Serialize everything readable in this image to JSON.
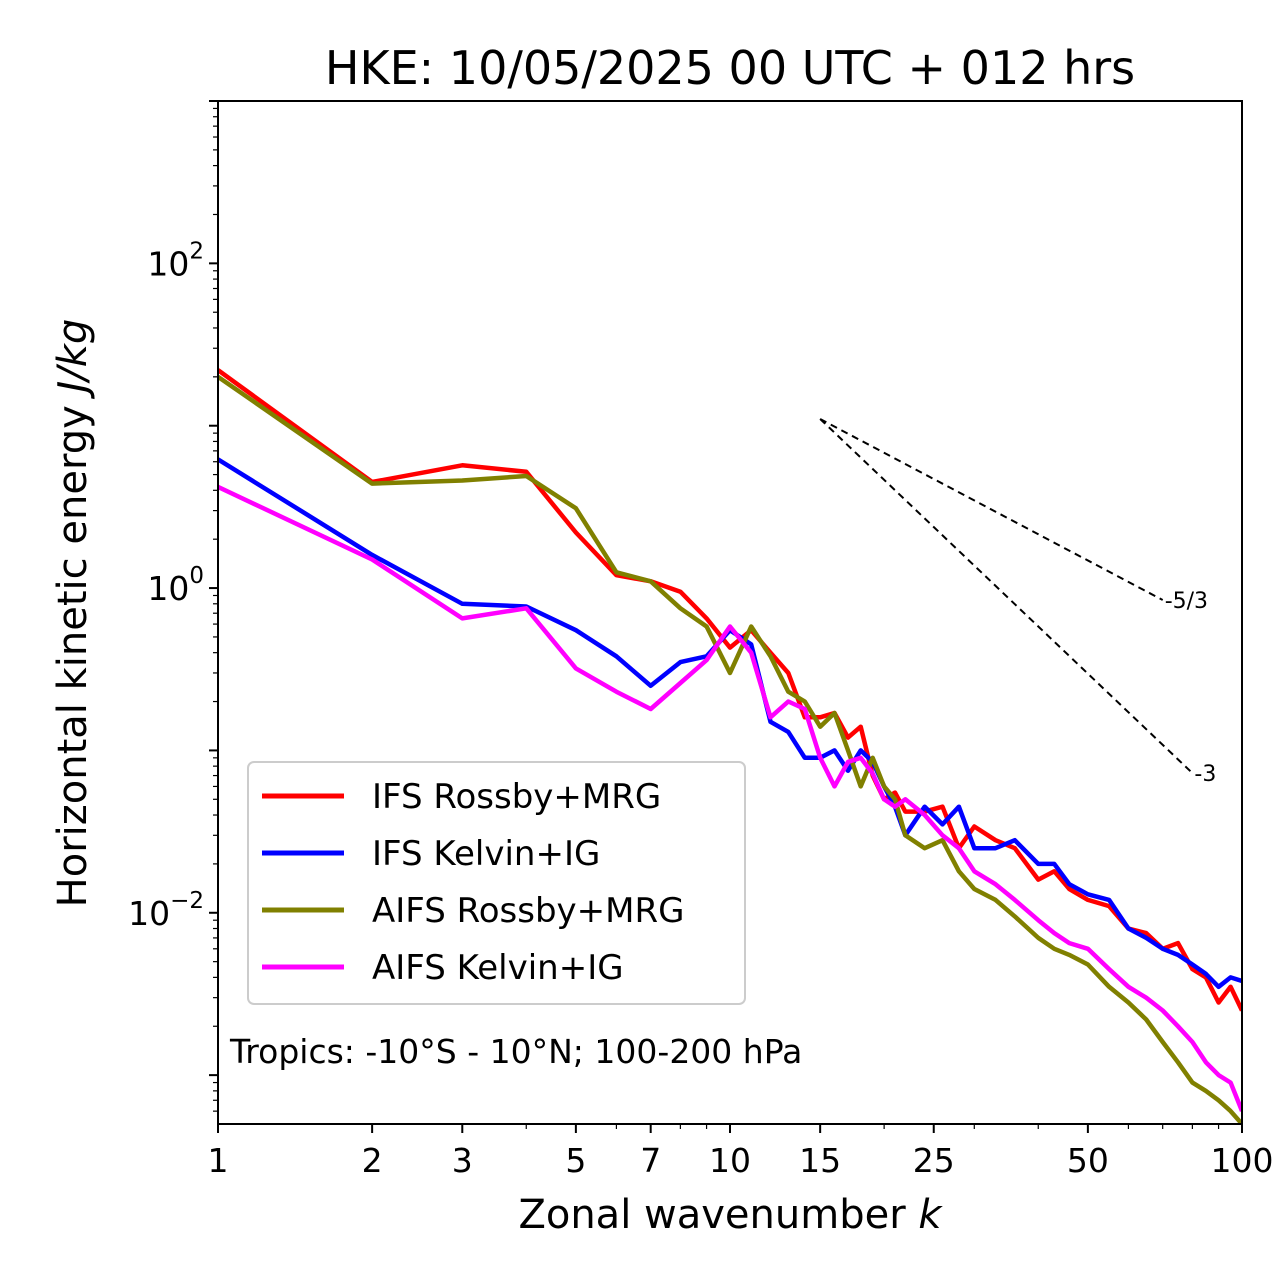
{
  "chart_data": {
    "type": "line",
    "title": "HKE: 10/05/2025 00 UTC + 012 hrs",
    "xlabel": "Zonal wavenumber",
    "xlabel_var": "k",
    "ylabel": "Horizontal kinetic energy",
    "ylabel_unit": "J/kg",
    "xscale": "log",
    "yscale": "log",
    "xlim": [
      1,
      100
    ],
    "ylim": [
      0.0005,
      1000
    ],
    "x_ticks": [
      1,
      2,
      3,
      5,
      7,
      10,
      15,
      25,
      50,
      100
    ],
    "x_tick_labels": [
      "1",
      "2",
      "3",
      "5",
      "7",
      "10",
      "15",
      "25",
      "50",
      "100"
    ],
    "y_ticks": [
      {
        "value": 100,
        "base": "10",
        "exp": "2"
      },
      {
        "value": 1,
        "base": "10",
        "exp": "0"
      },
      {
        "value": 0.01,
        "base": "10",
        "exp": "−2"
      }
    ],
    "grid": false,
    "legend_position": "lower-left",
    "annotation": "Tropics: -10°S - 10°N; 100-200 hPa",
    "reference_slopes": [
      {
        "label": "-5/3",
        "slope": -1.6667,
        "x0": 15,
        "y0": 11,
        "x1": 70
      },
      {
        "label": "-3",
        "slope": -3,
        "x0": 15,
        "y0": 11,
        "x1": 80
      }
    ],
    "series": [
      {
        "name": "IFS Rossby+MRG",
        "color": "#ff0000",
        "points": [
          [
            1,
            22
          ],
          [
            2,
            4.5
          ],
          [
            3,
            5.7
          ],
          [
            4,
            5.2
          ],
          [
            5,
            2.2
          ],
          [
            6,
            1.2
          ],
          [
            7,
            1.1
          ],
          [
            8,
            0.95
          ],
          [
            9,
            0.65
          ],
          [
            10,
            0.43
          ],
          [
            11,
            0.55
          ],
          [
            12,
            0.4
          ],
          [
            13,
            0.3
          ],
          [
            14,
            0.16
          ],
          [
            15,
            0.16
          ],
          [
            16,
            0.17
          ],
          [
            17,
            0.12
          ],
          [
            18,
            0.14
          ],
          [
            19,
            0.07
          ],
          [
            20,
            0.05
          ],
          [
            21,
            0.055
          ],
          [
            22,
            0.042
          ],
          [
            24,
            0.042
          ],
          [
            26,
            0.045
          ],
          [
            28,
            0.025
          ],
          [
            30,
            0.034
          ],
          [
            33,
            0.028
          ],
          [
            36,
            0.025
          ],
          [
            40,
            0.016
          ],
          [
            43,
            0.018
          ],
          [
            46,
            0.014
          ],
          [
            50,
            0.012
          ],
          [
            55,
            0.011
          ],
          [
            60,
            0.008
          ],
          [
            65,
            0.0075
          ],
          [
            70,
            0.006
          ],
          [
            75,
            0.0065
          ],
          [
            80,
            0.0045
          ],
          [
            85,
            0.004
          ],
          [
            90,
            0.0028
          ],
          [
            95,
            0.0035
          ],
          [
            100,
            0.0025
          ]
        ]
      },
      {
        "name": "IFS Kelvin+IG",
        "color": "#0000ff",
        "points": [
          [
            1,
            6.2
          ],
          [
            2,
            1.6
          ],
          [
            3,
            0.8
          ],
          [
            4,
            0.77
          ],
          [
            5,
            0.55
          ],
          [
            6,
            0.38
          ],
          [
            7,
            0.25
          ],
          [
            8,
            0.35
          ],
          [
            9,
            0.38
          ],
          [
            10,
            0.55
          ],
          [
            11,
            0.45
          ],
          [
            12,
            0.15
          ],
          [
            13,
            0.13
          ],
          [
            14,
            0.09
          ],
          [
            15,
            0.09
          ],
          [
            16,
            0.1
          ],
          [
            17,
            0.075
          ],
          [
            18,
            0.1
          ],
          [
            19,
            0.085
          ],
          [
            20,
            0.06
          ],
          [
            21,
            0.045
          ],
          [
            22,
            0.03
          ],
          [
            24,
            0.045
          ],
          [
            26,
            0.035
          ],
          [
            28,
            0.045
          ],
          [
            30,
            0.025
          ],
          [
            33,
            0.025
          ],
          [
            36,
            0.028
          ],
          [
            40,
            0.02
          ],
          [
            43,
            0.02
          ],
          [
            46,
            0.015
          ],
          [
            50,
            0.013
          ],
          [
            55,
            0.012
          ],
          [
            60,
            0.008
          ],
          [
            65,
            0.007
          ],
          [
            70,
            0.006
          ],
          [
            75,
            0.0055
          ],
          [
            80,
            0.0048
          ],
          [
            85,
            0.0042
          ],
          [
            90,
            0.0035
          ],
          [
            95,
            0.004
          ],
          [
            100,
            0.0038
          ]
        ]
      },
      {
        "name": "AIFS Rossby+MRG",
        "color": "#808000",
        "points": [
          [
            1,
            20
          ],
          [
            2,
            4.4
          ],
          [
            3,
            4.6
          ],
          [
            4,
            4.9
          ],
          [
            5,
            3.1
          ],
          [
            6,
            1.25
          ],
          [
            7,
            1.1
          ],
          [
            8,
            0.75
          ],
          [
            9,
            0.58
          ],
          [
            10,
            0.3
          ],
          [
            11,
            0.58
          ],
          [
            12,
            0.38
          ],
          [
            13,
            0.23
          ],
          [
            14,
            0.2
          ],
          [
            15,
            0.14
          ],
          [
            16,
            0.17
          ],
          [
            17,
            0.1
          ],
          [
            18,
            0.06
          ],
          [
            19,
            0.09
          ],
          [
            20,
            0.06
          ],
          [
            21,
            0.05
          ],
          [
            22,
            0.03
          ],
          [
            24,
            0.025
          ],
          [
            26,
            0.028
          ],
          [
            28,
            0.018
          ],
          [
            30,
            0.014
          ],
          [
            33,
            0.012
          ],
          [
            36,
            0.0095
          ],
          [
            40,
            0.007
          ],
          [
            43,
            0.006
          ],
          [
            46,
            0.0055
          ],
          [
            50,
            0.0048
          ],
          [
            55,
            0.0035
          ],
          [
            60,
            0.0028
          ],
          [
            65,
            0.0022
          ],
          [
            70,
            0.0016
          ],
          [
            75,
            0.0012
          ],
          [
            80,
            0.0009
          ],
          [
            85,
            0.0008
          ],
          [
            90,
            0.0007
          ],
          [
            95,
            0.0006
          ],
          [
            100,
            0.0005
          ]
        ]
      },
      {
        "name": "AIFS Kelvin+IG",
        "color": "#ff00ff",
        "points": [
          [
            1,
            4.2
          ],
          [
            2,
            1.5
          ],
          [
            3,
            0.65
          ],
          [
            4,
            0.75
          ],
          [
            5,
            0.32
          ],
          [
            6,
            0.23
          ],
          [
            7,
            0.18
          ],
          [
            8,
            0.26
          ],
          [
            9,
            0.36
          ],
          [
            10,
            0.58
          ],
          [
            11,
            0.4
          ],
          [
            12,
            0.16
          ],
          [
            13,
            0.2
          ],
          [
            14,
            0.18
          ],
          [
            15,
            0.09
          ],
          [
            16,
            0.06
          ],
          [
            17,
            0.085
          ],
          [
            18,
            0.09
          ],
          [
            19,
            0.072
          ],
          [
            20,
            0.05
          ],
          [
            21,
            0.045
          ],
          [
            22,
            0.05
          ],
          [
            24,
            0.04
          ],
          [
            26,
            0.03
          ],
          [
            28,
            0.025
          ],
          [
            30,
            0.018
          ],
          [
            33,
            0.015
          ],
          [
            36,
            0.012
          ],
          [
            40,
            0.009
          ],
          [
            43,
            0.0075
          ],
          [
            46,
            0.0065
          ],
          [
            50,
            0.006
          ],
          [
            55,
            0.0045
          ],
          [
            60,
            0.0035
          ],
          [
            65,
            0.003
          ],
          [
            70,
            0.0025
          ],
          [
            75,
            0.002
          ],
          [
            80,
            0.0016
          ],
          [
            85,
            0.0012
          ],
          [
            90,
            0.001
          ],
          [
            95,
            0.0009
          ],
          [
            100,
            0.0006
          ]
        ]
      }
    ]
  }
}
